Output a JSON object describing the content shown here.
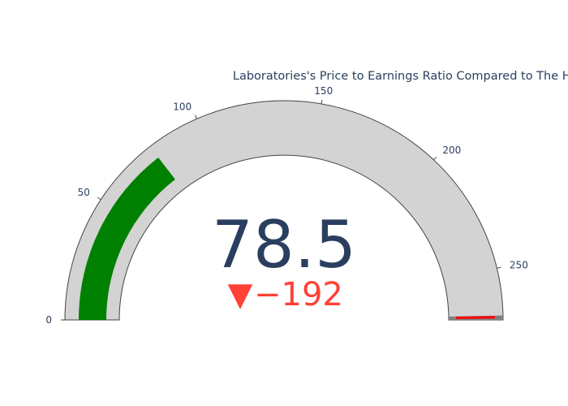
{
  "chart_data": {
    "type": "gauge",
    "title": "Laboratories's Price to Earnings Ratio Compared to The Health Care Equipment & Supplies Industry",
    "value": 78.5,
    "value_label": "78.5",
    "delta": {
      "value": -192,
      "label": "−192",
      "symbol": "▼",
      "color": "#ff4136"
    },
    "reference": 270.5,
    "axis": {
      "range": [
        0,
        270.5
      ],
      "ticks": [
        0,
        50,
        100,
        150,
        200,
        250
      ],
      "tick_labels": [
        "0",
        "50",
        "100",
        "150",
        "200",
        "250"
      ]
    },
    "steps": [
      {
        "range": [
          0,
          270.5
        ],
        "color": "#d3d3d3"
      }
    ],
    "bar_color": "#008000",
    "threshold": {
      "value": 270.5,
      "color": "#ff0000"
    },
    "colors": {
      "title": "#2a3f5f",
      "value": "#2a3f5f",
      "outline": "#444444",
      "threshold_band": "#808080"
    }
  }
}
